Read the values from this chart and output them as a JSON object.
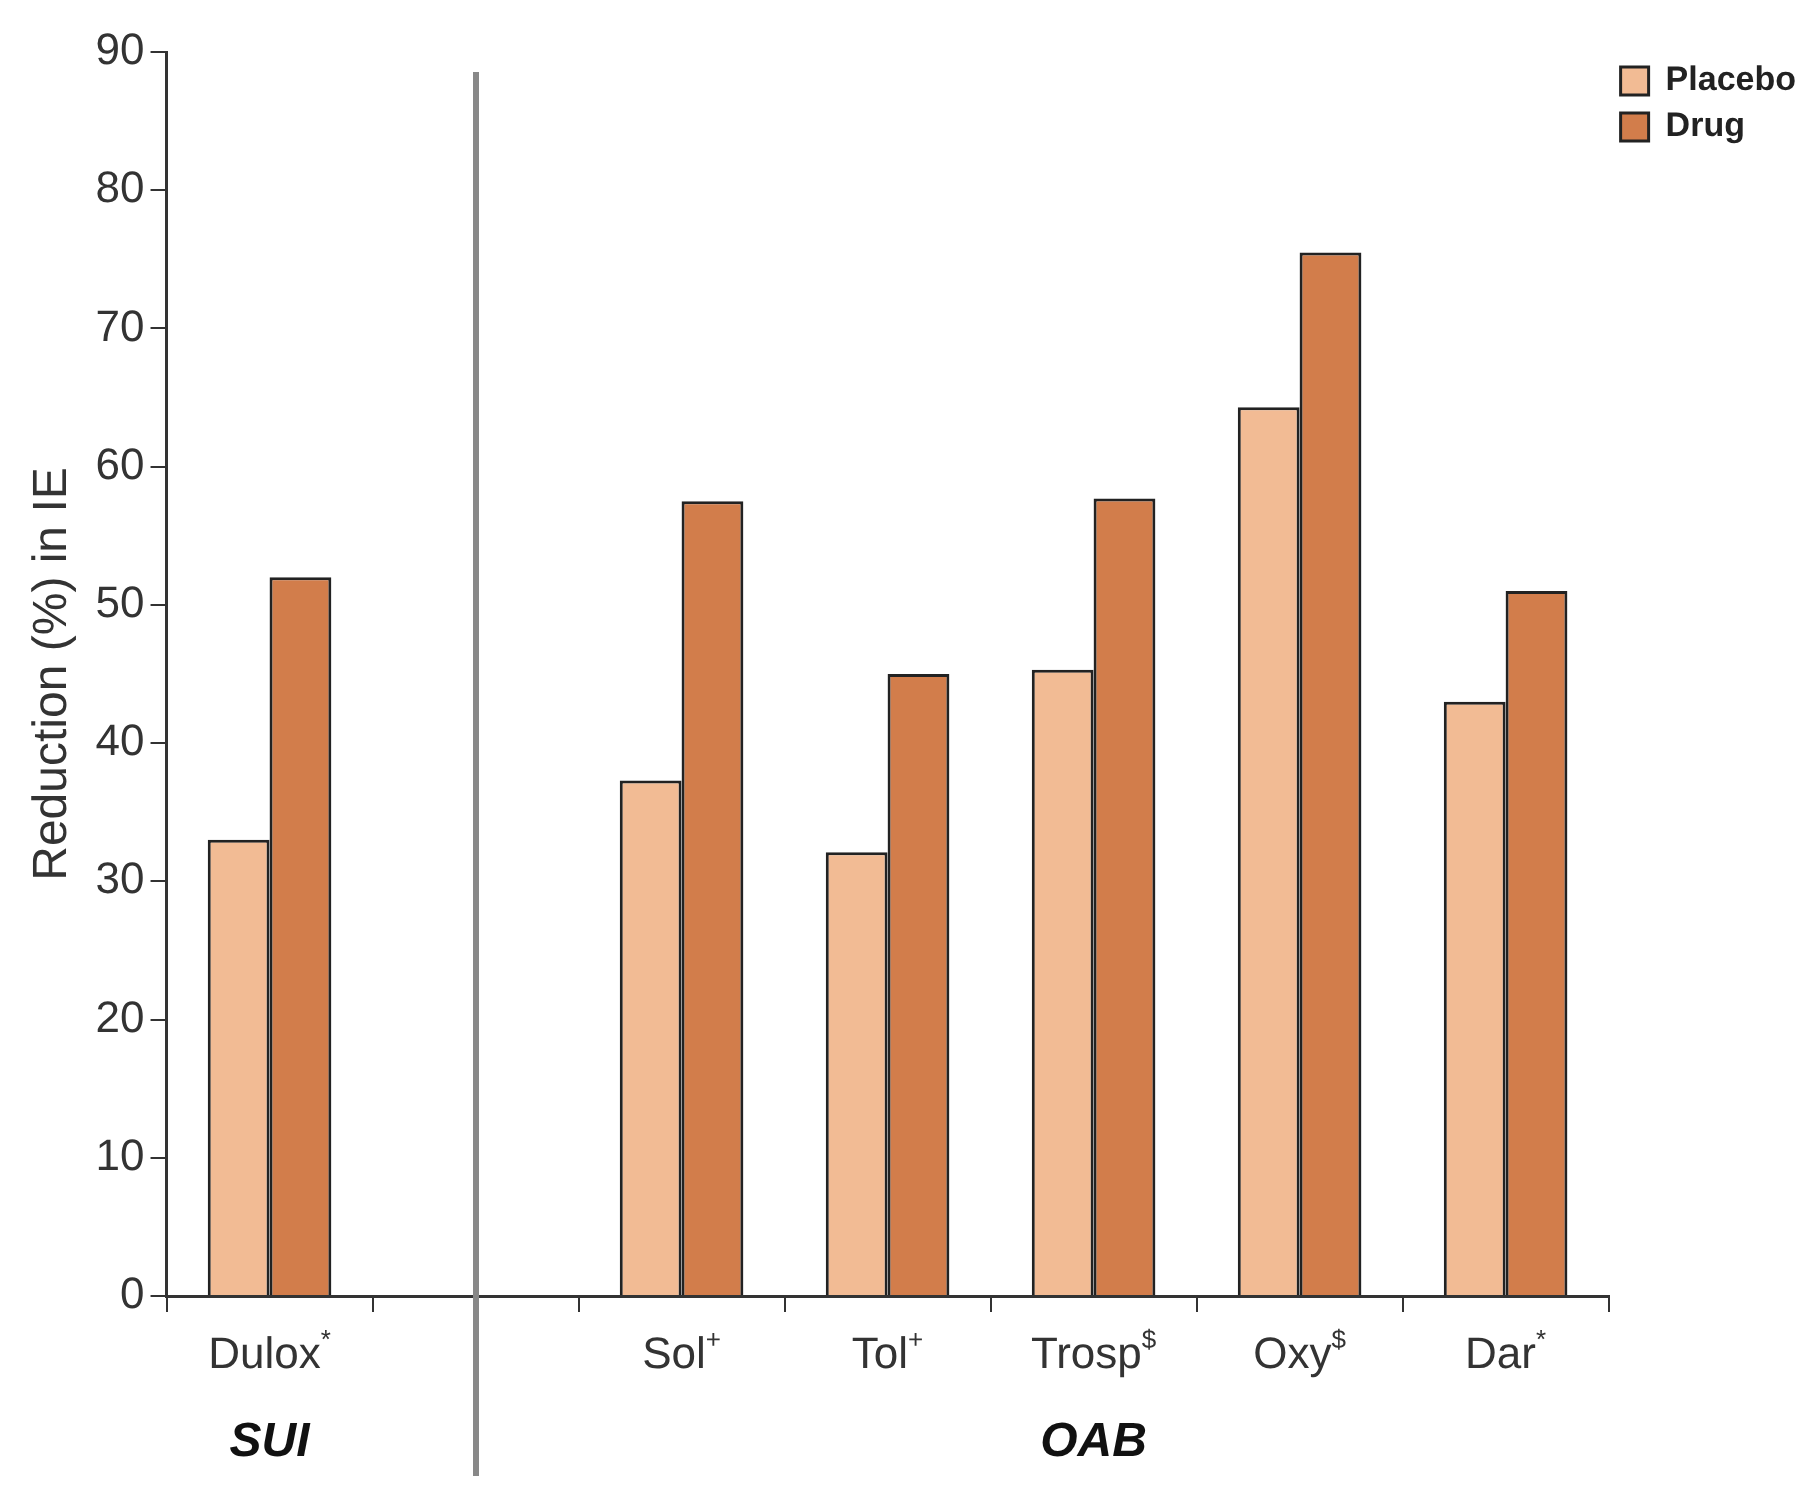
{
  "chart_data": {
    "type": "bar",
    "ylabel": "Reduction (%) in IE",
    "categories": [
      "Dulox$^{*}$",
      null,
      "Sol$^{+}$",
      "Tol$^{+}$",
      "Trosp$^{$}$",
      "Oxy$^{$}$",
      "Dar$^{*}$"
    ],
    "series": [
      {
        "name": "Placebo",
        "color": "#f2bb94",
        "values": [
          33,
          null,
          37.3,
          32.1,
          45.3,
          64.3,
          43
        ]
      },
      {
        "name": "Drug",
        "color": "#d27d4b",
        "values": [
          52,
          null,
          57.5,
          45,
          57.7,
          75.5,
          51
        ]
      }
    ],
    "ylim": [
      0,
      90
    ],
    "yticks": [
      0,
      10,
      20,
      30,
      40,
      50,
      60,
      70,
      80,
      90
    ],
    "annotations": [
      "SUI",
      "OAB"
    ],
    "legend": "top right"
  }
}
